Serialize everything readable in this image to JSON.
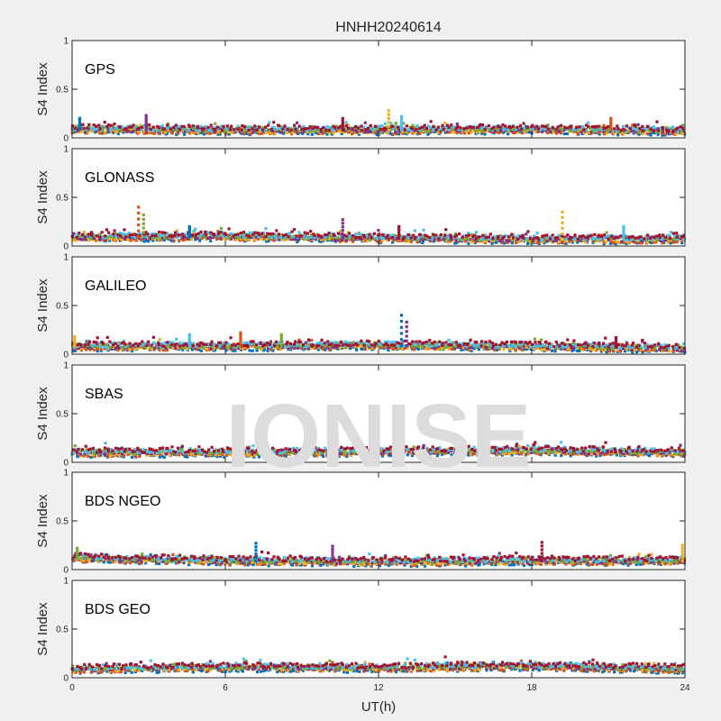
{
  "figure": {
    "title": "HNHH20240614",
    "watermark": "IONISE",
    "xlabel": "UT(h)"
  },
  "chart_data": {
    "type": "scatter",
    "title": "HNHH20240614",
    "xlabel": "UT(h)",
    "ylabel": "S4 Index",
    "xlim": [
      0,
      24
    ],
    "ylim": [
      0,
      1
    ],
    "xticks": [
      0,
      6,
      12,
      18,
      24
    ],
    "yticks": [
      0,
      0.5,
      1
    ],
    "grid": false,
    "series_colors": [
      "#0072bd",
      "#d95319",
      "#edb120",
      "#7e2f8e",
      "#77ac30",
      "#4dbeee",
      "#a2142f"
    ],
    "panels": [
      {
        "label": "GPS",
        "ylabel": "S4 Index",
        "baseline": [
          [
            0,
            0.09
          ],
          [
            6,
            0.08
          ],
          [
            12,
            0.08
          ],
          [
            18,
            0.09
          ],
          [
            24,
            0.07
          ]
        ],
        "peaks": [
          [
            0.3,
            0.2
          ],
          [
            2.9,
            0.23
          ],
          [
            10.6,
            0.2
          ],
          [
            12.4,
            0.28
          ],
          [
            12.9,
            0.22
          ],
          [
            21.1,
            0.2
          ]
        ]
      },
      {
        "label": "GLONASS",
        "ylabel": "S4 Index",
        "baseline": [
          [
            0,
            0.09
          ],
          [
            6,
            0.1
          ],
          [
            12,
            0.08
          ],
          [
            18,
            0.07
          ],
          [
            24,
            0.07
          ]
        ],
        "peaks": [
          [
            2.6,
            0.4
          ],
          [
            2.8,
            0.32
          ],
          [
            4.6,
            0.2
          ],
          [
            10.6,
            0.27
          ],
          [
            12.8,
            0.2
          ],
          [
            19.2,
            0.35
          ],
          [
            21.6,
            0.2
          ]
        ]
      },
      {
        "label": "GALILEO",
        "ylabel": "S4 Index",
        "baseline": [
          [
            0,
            0.08
          ],
          [
            6,
            0.08
          ],
          [
            12,
            0.09
          ],
          [
            18,
            0.08
          ],
          [
            24,
            0.06
          ]
        ],
        "peaks": [
          [
            0.1,
            0.18
          ],
          [
            4.6,
            0.2
          ],
          [
            6.6,
            0.22
          ],
          [
            8.2,
            0.2
          ],
          [
            12.9,
            0.4
          ],
          [
            13.1,
            0.33
          ],
          [
            21.3,
            0.17
          ]
        ]
      },
      {
        "label": "SBAS",
        "ylabel": "S4 Index",
        "baseline": [
          [
            0,
            0.1
          ],
          [
            6,
            0.1
          ],
          [
            12,
            0.11
          ],
          [
            18,
            0.12
          ],
          [
            24,
            0.1
          ]
        ],
        "peaks": []
      },
      {
        "label": "BDS NGEO",
        "ylabel": "S4 Index",
        "baseline": [
          [
            0,
            0.12
          ],
          [
            6,
            0.09
          ],
          [
            12,
            0.08
          ],
          [
            18,
            0.09
          ],
          [
            24,
            0.09
          ]
        ],
        "peaks": [
          [
            0.2,
            0.22
          ],
          [
            7.2,
            0.27
          ],
          [
            10.2,
            0.24
          ],
          [
            18.4,
            0.28
          ],
          [
            23.9,
            0.25
          ]
        ]
      },
      {
        "label": "BDS GEO",
        "ylabel": "S4 Index",
        "baseline": [
          [
            0,
            0.09
          ],
          [
            6,
            0.11
          ],
          [
            12,
            0.1
          ],
          [
            18,
            0.12
          ],
          [
            24,
            0.09
          ]
        ],
        "peaks": []
      }
    ]
  }
}
